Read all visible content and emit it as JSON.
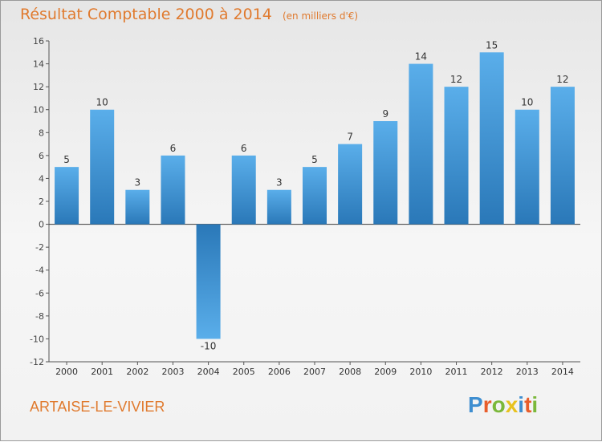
{
  "header": {
    "title": "Résultat Comptable 2000 à 2014",
    "subtitle": "(en milliers d'€)"
  },
  "footer": {
    "place": "ARTAISE-LE-VIVIER",
    "brand": "Proxiti",
    "brand_colors": [
      "#3e8ed0",
      "#e85d2b",
      "#7bb83a",
      "#e8c21f",
      "#3e8ed0",
      "#e85d2b",
      "#7bb83a"
    ]
  },
  "chart_data": {
    "type": "bar",
    "title": "Résultat Comptable 2000 à 2014",
    "subtitle": "(en milliers d'€)",
    "xlabel": "",
    "ylabel": "",
    "categories": [
      "2000",
      "2001",
      "2002",
      "2003",
      "2004",
      "2005",
      "2006",
      "2007",
      "2008",
      "2009",
      "2010",
      "2011",
      "2012",
      "2013",
      "2014"
    ],
    "values": [
      5,
      10,
      3,
      6,
      -10,
      6,
      3,
      5,
      7,
      9,
      14,
      12,
      15,
      10,
      12
    ],
    "ylim": [
      -12,
      16
    ],
    "yticks": [
      -12,
      -10,
      -8,
      -6,
      -4,
      -2,
      0,
      2,
      4,
      6,
      8,
      10,
      12,
      14,
      16
    ],
    "grid": false,
    "colors": {
      "bar_light": "#5aaeea",
      "bar_dark": "#2a78b8",
      "axis": "#555555",
      "label": "#333333"
    }
  }
}
